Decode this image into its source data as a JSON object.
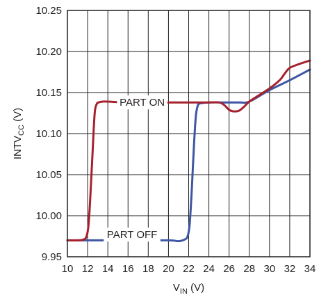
{
  "chart_data": {
    "type": "line",
    "xlabel_main": "V",
    "xlabel_sub": "IN",
    "xlabel_unit": " (V)",
    "ylabel_main": "INTV",
    "ylabel_sub": "CC",
    "ylabel_unit": " (V)",
    "xlim": [
      10,
      34
    ],
    "ylim": [
      9.95,
      10.25
    ],
    "x_ticks": [
      10,
      12,
      14,
      16,
      18,
      20,
      22,
      24,
      26,
      28,
      30,
      32,
      34
    ],
    "x_tick_labels": [
      "10",
      "12",
      "14",
      "16",
      "18",
      "20",
      "22",
      "24",
      "26",
      "28",
      "30",
      "32",
      "34"
    ],
    "y_ticks": [
      9.95,
      10.0,
      10.05,
      10.1,
      10.15,
      10.2,
      10.25
    ],
    "y_tick_labels": [
      "9.95",
      "10.00",
      "10.05",
      "10.10",
      "10.15",
      "10.20",
      "10.25"
    ],
    "grid": true,
    "series": [
      {
        "color": "#a6212e",
        "x": [
          10,
          11,
          11.6,
          11.9,
          12.1,
          12.3,
          12.5,
          12.7,
          12.9,
          13.1,
          13.5,
          14,
          16,
          20,
          24,
          25,
          25.5,
          26,
          26.5,
          27,
          27.5,
          28,
          29,
          30,
          31,
          31.5,
          32,
          33,
          34
        ],
        "y": [
          9.97,
          9.97,
          9.971,
          9.975,
          9.99,
          10.03,
          10.08,
          10.125,
          10.136,
          10.138,
          10.139,
          10.139,
          10.138,
          10.138,
          10.138,
          10.138,
          10.135,
          10.129,
          10.127,
          10.128,
          10.133,
          10.139,
          10.147,
          10.155,
          10.165,
          10.173,
          10.18,
          10.185,
          10.189
        ]
      },
      {
        "color": "#3e56a3",
        "x": [
          10,
          12,
          16,
          20,
          21,
          21.6,
          21.9,
          22.1,
          22.3,
          22.5,
          22.7,
          22.9,
          23.2,
          24,
          25,
          26,
          27,
          28,
          30,
          32,
          34
        ],
        "y": [
          9.97,
          9.97,
          9.97,
          9.97,
          9.969,
          9.971,
          9.975,
          9.99,
          10.03,
          10.08,
          10.12,
          10.134,
          10.137,
          10.138,
          10.138,
          10.138,
          10.138,
          10.139,
          10.153,
          10.165,
          10.178
        ]
      }
    ],
    "annotations": [
      {
        "text": "PART ON",
        "x": 17.4,
        "y": 10.138
      },
      {
        "text": "PART OFF",
        "x": 16.4,
        "y": 9.977
      }
    ]
  },
  "figure_id": "37991 G14"
}
